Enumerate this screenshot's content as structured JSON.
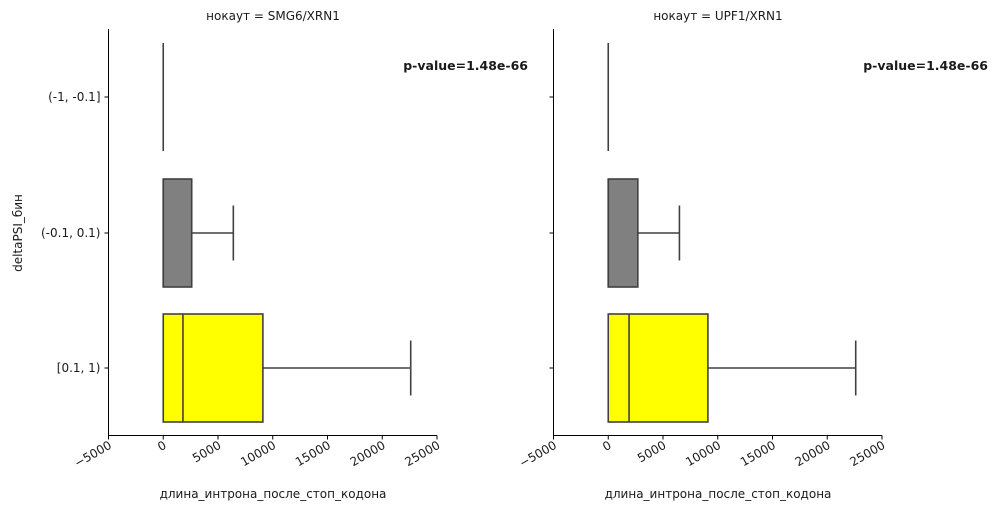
{
  "chart_data": {
    "type": "boxplot-horizontal",
    "y_label": "deltaPSI_бин",
    "x_label": "длина_интрона_после_стоп_кодона",
    "categories": [
      "(-1, -0.1]",
      "(-0.1, 0.1)",
      "[0.1, 1)"
    ],
    "category_colors": [
      "#808080",
      "#808080",
      "#ffff00"
    ],
    "xlim": [
      -5000,
      25000
    ],
    "x_ticks": [
      -5000,
      0,
      5000,
      10000,
      15000,
      20000,
      25000
    ],
    "x_tick_labels": [
      "−5000",
      "0",
      "5000",
      "10000",
      "15000",
      "20000",
      "25000"
    ],
    "panels": [
      {
        "title": "нокаут = SMG6/XRN1",
        "annotation": "p-value=1.48e-66",
        "boxes": [
          {
            "category": "(-1, -0.1]",
            "whisker_low": 0,
            "q1": 0,
            "median": 0,
            "q3": 0,
            "whisker_high": 0
          },
          {
            "category": "(-0.1, 0.1)",
            "whisker_low": 0,
            "q1": 0,
            "median": 0,
            "q3": 2600,
            "whisker_high": 6400
          },
          {
            "category": "[0.1, 1)",
            "whisker_low": 0,
            "q1": 0,
            "median": 1800,
            "q3": 9100,
            "whisker_high": 22600
          }
        ]
      },
      {
        "title": "нокаут = UPF1/XRN1",
        "annotation": "p-value=1.48e-66",
        "boxes": [
          {
            "category": "(-1, -0.1]",
            "whisker_low": 0,
            "q1": 0,
            "median": 0,
            "q3": 0,
            "whisker_high": 0
          },
          {
            "category": "(-0.1, 0.1)",
            "whisker_low": 0,
            "q1": 0,
            "median": 0,
            "q3": 2700,
            "whisker_high": 6500
          },
          {
            "category": "[0.1, 1)",
            "whisker_low": 0,
            "q1": 0,
            "median": 1900,
            "q3": 9100,
            "whisker_high": 22600
          }
        ]
      }
    ]
  }
}
